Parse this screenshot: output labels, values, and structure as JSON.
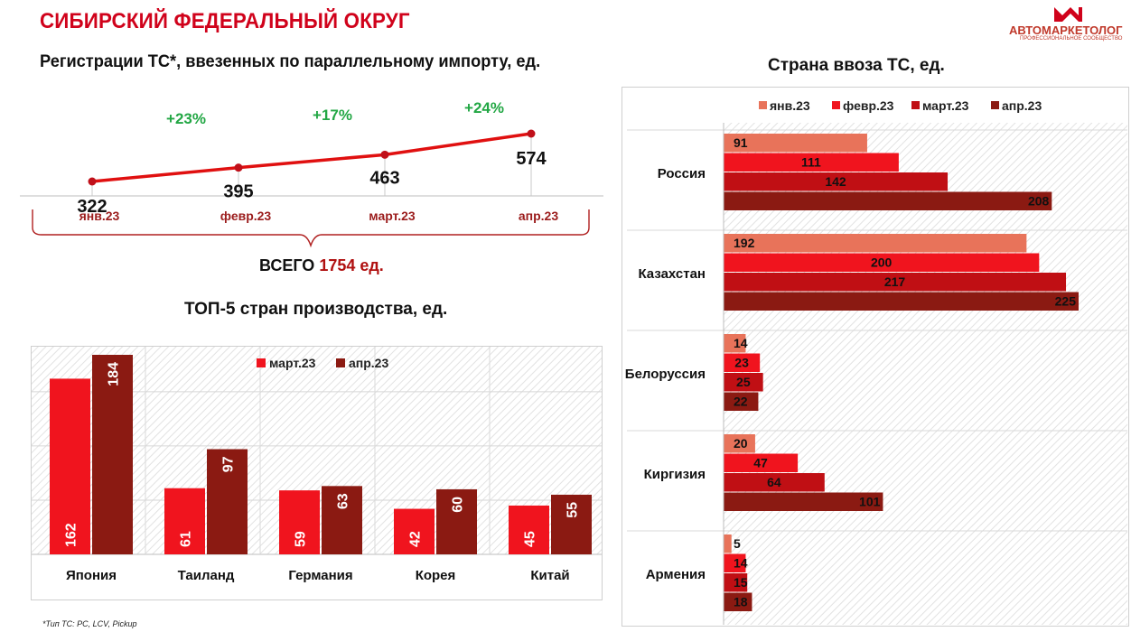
{
  "header": {
    "title": "СИБИРСКИЙ ФЕДЕРАЛЬНЫЙ ОКРУГ",
    "subtitle": "Регистрации ТС*, ввезенных по параллельному импорту, ед.",
    "logo_name": "АВТОМАРКЕТОЛОГ",
    "logo_tagline": "ПРОФЕССИОНАЛЬНОЕ СООБЩЕСТВО"
  },
  "total": {
    "label": "ВСЕГО",
    "value": "1754 ед."
  },
  "footnote": "*Тип ТС: PC, LCV, Pickup",
  "colors": {
    "accent": "#d0021b",
    "jan": "#e8735a",
    "feb": "#f0141e",
    "mar": "#c00f14",
    "apr": "#8b1a12",
    "growth": "#22a744"
  },
  "chart_data": [
    {
      "type": "line",
      "title": "Регистрации ТС*, ввезенных по параллельному импорту, ед.",
      "categories": [
        "янв.23",
        "февр.23",
        "март.23",
        "апр.23"
      ],
      "values": [
        322,
        395,
        463,
        574
      ],
      "growth_labels": [
        "+23%",
        "+17%",
        "+24%"
      ],
      "ylim": [
        0,
        700
      ]
    },
    {
      "type": "bar",
      "title": "ТОП-5 стран производства, ед.",
      "categories": [
        "Япония",
        "Таиланд",
        "Германия",
        "Корея",
        "Китай"
      ],
      "series": [
        {
          "name": "март.23",
          "values": [
            162,
            61,
            59,
            42,
            45
          ]
        },
        {
          "name": "апр.23",
          "values": [
            184,
            97,
            63,
            60,
            55
          ]
        }
      ],
      "ylim": [
        0,
        200
      ],
      "legend": "top-center"
    },
    {
      "type": "bar",
      "orientation": "horizontal",
      "title": "Страна ввоза ТС, ед.",
      "categories": [
        "Россия",
        "Казахстан",
        "Белоруссия",
        "Киргизия",
        "Армения"
      ],
      "series": [
        {
          "name": "янв.23",
          "values": [
            91,
            192,
            14,
            20,
            5
          ]
        },
        {
          "name": "февр.23",
          "values": [
            111,
            200,
            23,
            47,
            14
          ]
        },
        {
          "name": "март.23",
          "values": [
            142,
            217,
            25,
            64,
            15
          ]
        },
        {
          "name": "апр.23",
          "values": [
            208,
            225,
            22,
            101,
            18
          ]
        }
      ],
      "xlim": [
        0,
        260
      ],
      "legend": "top"
    }
  ]
}
